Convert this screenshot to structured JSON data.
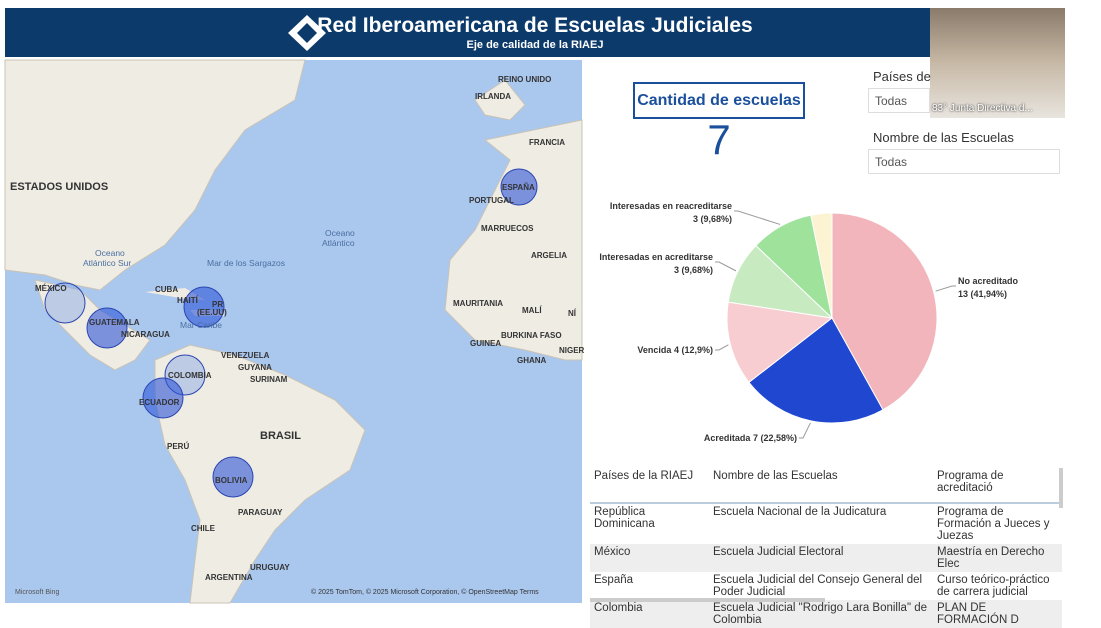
{
  "header": {
    "title": "Red Iberoamericana de Escuelas Judiciales",
    "subtitle": "Eje de calidad de la RIAEJ"
  },
  "webcam": {
    "caption": "83° Junta Directiva d..."
  },
  "card": {
    "title": "Cantidad de escuelas",
    "value": "7"
  },
  "slicers": [
    {
      "label": "Países de",
      "value": "Todas"
    },
    {
      "label": "Nombre de las Escuelas",
      "value": "Todas"
    }
  ],
  "map": {
    "labels": [
      "REINO UNIDO",
      "IRLANDA",
      "FRANCIA",
      "ESPAÑA",
      "PORTUGAL",
      "MARRUECOS",
      "ARGELIA",
      "ESTADOS UNIDOS",
      "Oceano",
      "Atlántico",
      "Oceano",
      "Atlántico Sur",
      "Mar de los Sargazos",
      "MÉXICO",
      "CUBA",
      "HAITÍ",
      "PR",
      "(EE.UU)",
      "GUATEMALA",
      "NICARAGUA",
      "Mar Caribe",
      "VENEZUELA",
      "GUYANA",
      "SURINAM",
      "COLOMBIA",
      "ECUADOR",
      "PERÚ",
      "BRASIL",
      "BOLIVIA",
      "PARAGUAY",
      "CHILE",
      "URUGUAY",
      "ARGENTINA",
      "MAURITANIA",
      "MALÍ",
      "NÍ",
      "BURKINA FASO",
      "GUINEA",
      "GHANA",
      "NIGER"
    ],
    "attribution": "© 2025 TomTom, © 2025 Microsoft Corporation, © OpenStreetMap  Terms",
    "brand": "Microsoft Bing"
  },
  "chart_data": {
    "type": "pie",
    "slices": [
      {
        "name": "No acreditado",
        "value": 13,
        "value_label": "13 (41,94%)",
        "color": "#f3b5bc"
      },
      {
        "name": "Acreditada",
        "value": 7,
        "value_label": "7 (22,58%)",
        "color": "#1f47cf"
      },
      {
        "name": "Vencida",
        "value": 4,
        "value_label": "4 (12,9%)",
        "color": "#f7cdd2"
      },
      {
        "name": "Interesadas en acreditarse",
        "value": 3,
        "value_label": "3 (9,68%)",
        "color": "#c8eac1"
      },
      {
        "name": "Interesadas en reacreditarse",
        "value": 3,
        "value_label": "3 (9,68%)",
        "color": "#9fe29c"
      },
      {
        "name": null,
        "value": 1,
        "color": "#fbf3d2"
      }
    ]
  },
  "table": {
    "columns": [
      "Países de la RIAEJ",
      "Nombre de las Escuelas",
      "Programa de acreditació"
    ],
    "rows": [
      [
        "República Dominicana",
        "Escuela Nacional de la Judicatura",
        "Programa de Formación a Jueces y Juezas"
      ],
      [
        "México",
        "Escuela Judicial Electoral",
        "Maestría en Derecho Elec"
      ],
      [
        "España",
        "Escuela Judicial del Consejo General del Poder Judicial",
        "Curso teórico-práctico de carrera judicial"
      ],
      [
        "Colombia",
        "Escuela Judicial \"Rodrigo Lara Bonilla\" de Colombia",
        "PLAN DE FORMACIÓN D"
      ]
    ]
  }
}
